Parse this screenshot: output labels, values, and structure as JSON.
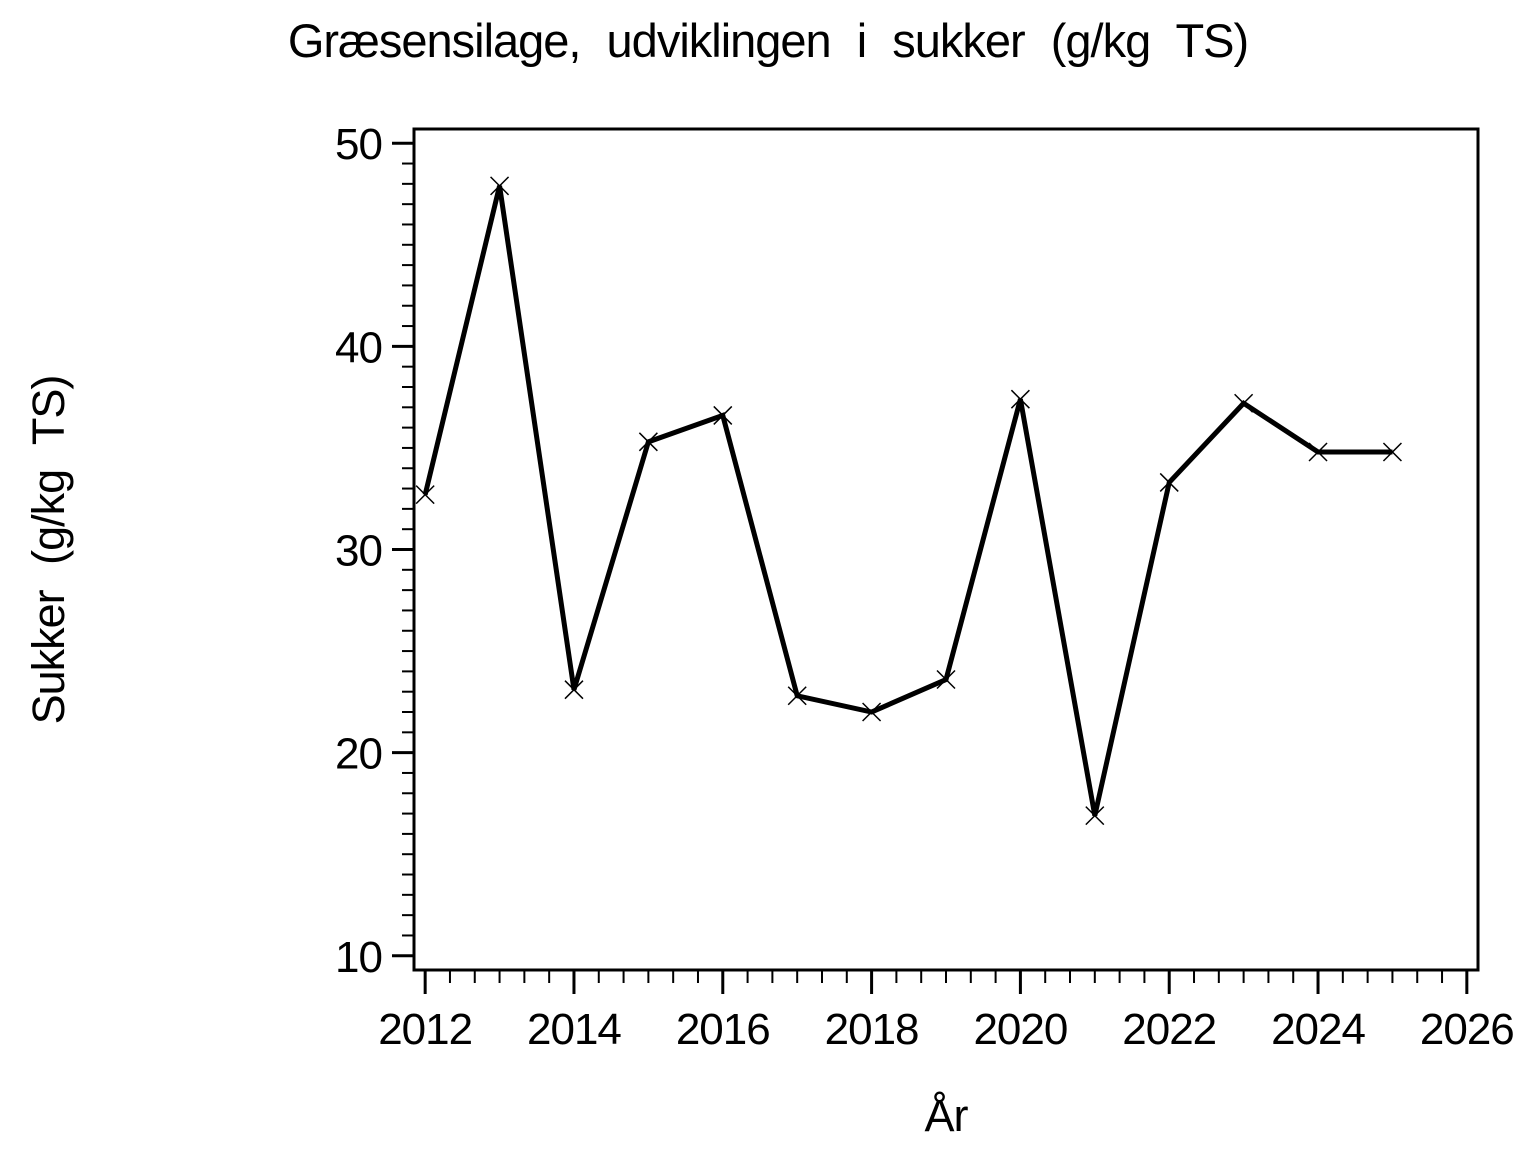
{
  "page": {
    "background_color": "#ffffff",
    "foreground_color": "#000000"
  },
  "chart_data": {
    "type": "line",
    "title": "Græsensilage, udviklingen i sukker (g/kg TS)",
    "xlabel": "År",
    "ylabel": "Sukker (g/kg TS)",
    "x": [
      2012,
      2013,
      2014,
      2015,
      2016,
      2017,
      2018,
      2019,
      2020,
      2021,
      2022,
      2023,
      2024,
      2025
    ],
    "y": [
      32.7,
      47.9,
      23.1,
      35.3,
      36.6,
      22.8,
      22.0,
      23.6,
      37.4,
      16.9,
      33.3,
      37.2,
      34.8,
      34.8
    ],
    "marker": "x",
    "line_color": "#000000",
    "line_width": 5,
    "xlim": [
      2011.85,
      2026.15
    ],
    "ylim": [
      9.3,
      50.7
    ],
    "x_ticks": [
      2012,
      2014,
      2016,
      2018,
      2020,
      2022,
      2024,
      2026
    ],
    "y_ticks": [
      10,
      20,
      30,
      40,
      50
    ],
    "x_minor_divisions_per_major": 6,
    "y_minor_divisions_per_major": 10,
    "grid": false,
    "legend": false
  }
}
